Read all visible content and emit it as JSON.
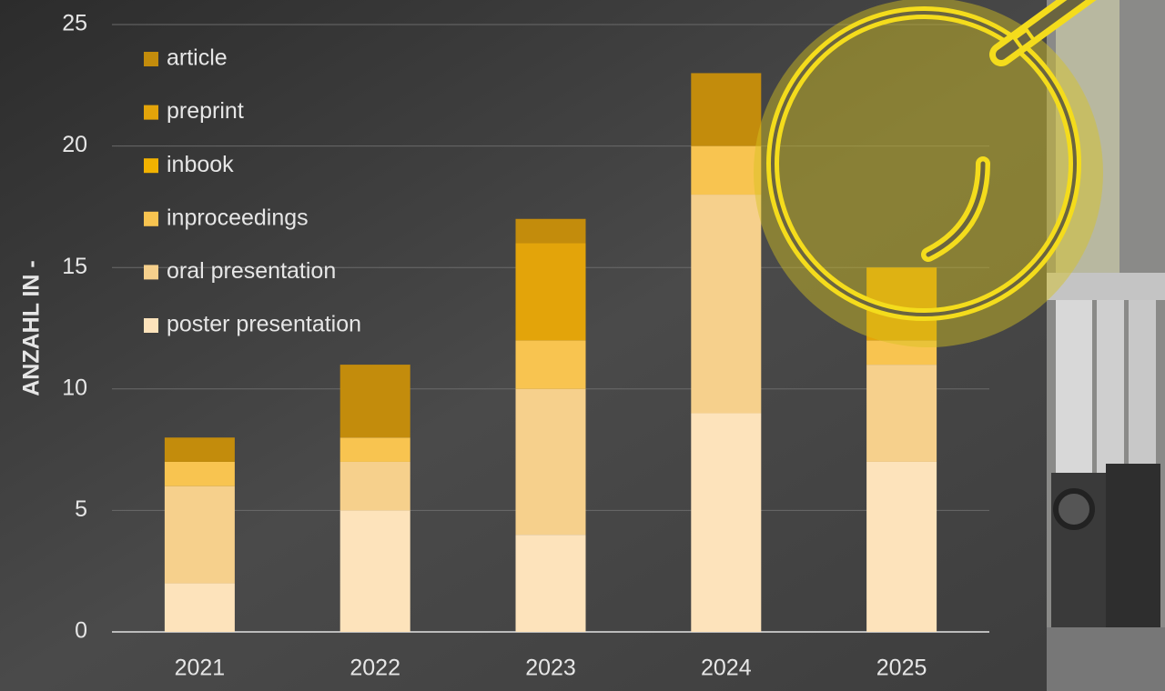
{
  "chart_data": {
    "type": "stacked-bar",
    "y_label": "ANZAHL IN -",
    "categories": [
      "2021",
      "2022",
      "2023",
      "2024",
      "2025"
    ],
    "series": [
      {
        "name": "poster presentation",
        "color": "#fde3bb",
        "values": [
          2,
          5,
          4,
          9,
          7
        ]
      },
      {
        "name": "oral presentation",
        "color": "#f6d08c",
        "values": [
          4,
          2,
          6,
          9,
          4
        ]
      },
      {
        "name": "inproceedings",
        "color": "#f8c450",
        "values": [
          1,
          1,
          2,
          2,
          1
        ]
      },
      {
        "name": "inbook",
        "color": "#f2b200",
        "values": [
          0,
          0,
          0,
          0,
          0
        ]
      },
      {
        "name": "preprint",
        "color": "#e3a40a",
        "values": [
          0,
          0,
          4,
          0,
          3
        ]
      },
      {
        "name": "article",
        "color": "#c38c0c",
        "values": [
          1,
          3,
          1,
          3,
          0
        ]
      }
    ],
    "ylim": [
      0,
      25
    ],
    "yticks": [
      0,
      5,
      10,
      15,
      20,
      25
    ],
    "grid": true
  }
}
